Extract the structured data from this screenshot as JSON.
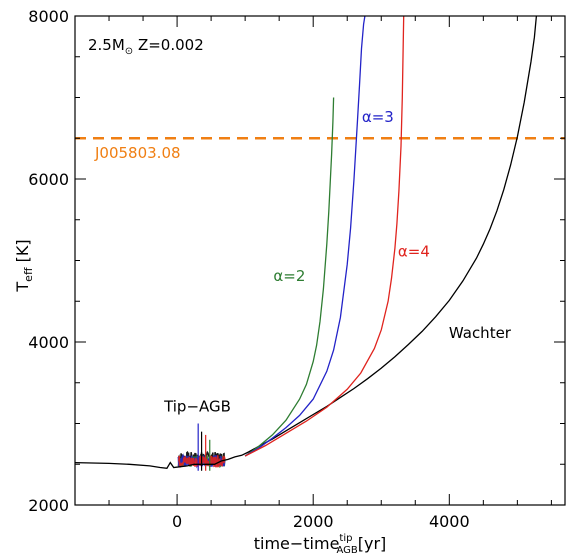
{
  "chart_data": {
    "type": "line",
    "title": "",
    "panel_label": {
      "mass": "2.5",
      "mass_unit_symbol": "M",
      "mass_unit_subscript": "⊙",
      "metallicity": "Z=0.002"
    },
    "xlabel": {
      "text": "time−time",
      "superscript": "tip",
      "subscript": "AGB",
      "unit": "[yr]"
    },
    "ylabel": {
      "text": "T",
      "subscript": "eff",
      "unit": "[K]"
    },
    "xlim": [
      -1500,
      5700
    ],
    "ylim": [
      2000,
      8000
    ],
    "xticks": [
      0,
      2000,
      4000
    ],
    "yticks": [
      2000,
      4000,
      6000,
      8000
    ],
    "x_minor_step": 500,
    "y_minor_step": 500,
    "grid": false,
    "legend": "none",
    "reference_line": {
      "label": "J005803.08",
      "y": 6500,
      "color": "#f07f13",
      "style": "dashed"
    },
    "annotations": [
      {
        "text": "Tip−AGB",
        "x": 300,
        "y": 3150,
        "color": "#000000"
      },
      {
        "text": "α=2",
        "x": 1650,
        "y": 4750,
        "color": "#2e7d32"
      },
      {
        "text": "α=3",
        "x": 2950,
        "y": 6700,
        "color": "#2323c8"
      },
      {
        "text": "α=4",
        "x": 3480,
        "y": 5050,
        "color": "#e0241e"
      },
      {
        "text": "Wachter",
        "x": 4450,
        "y": 4050,
        "color": "#000000"
      }
    ],
    "series": [
      {
        "name": "Wachter",
        "color": "#000000",
        "x": [
          -1500,
          -1000,
          -700,
          -400,
          -250,
          -150,
          -100,
          -50,
          50,
          150,
          250,
          400,
          550,
          650,
          750,
          850,
          950,
          1050,
          1200,
          1400,
          1600,
          1800,
          2000,
          2200,
          2400,
          2600,
          2800,
          3000,
          3200,
          3400,
          3600,
          3800,
          4000,
          4200,
          4400,
          4500,
          4600,
          4700,
          4800,
          4900,
          5000,
          5100,
          5200,
          5250,
          5280
        ],
        "y": [
          2520,
          2510,
          2500,
          2480,
          2460,
          2450,
          2520,
          2460,
          2470,
          2480,
          2500,
          2500,
          2500,
          2540,
          2560,
          2590,
          2610,
          2650,
          2720,
          2810,
          2910,
          3010,
          3110,
          3210,
          3320,
          3430,
          3550,
          3680,
          3820,
          3970,
          4130,
          4310,
          4510,
          4750,
          5030,
          5200,
          5390,
          5610,
          5870,
          6170,
          6520,
          6940,
          7440,
          7740,
          8000
        ]
      },
      {
        "name": "α=2",
        "color": "#2e7d32",
        "x": [
          1000,
          1200,
          1400,
          1600,
          1800,
          1900,
          2000,
          2050,
          2100,
          2150,
          2200,
          2230,
          2250,
          2270,
          2290,
          2300
        ],
        "y": [
          2600,
          2720,
          2860,
          3040,
          3300,
          3480,
          3760,
          3960,
          4250,
          4650,
          5200,
          5600,
          5950,
          6300,
          6700,
          7000
        ]
      },
      {
        "name": "α=3",
        "color": "#2323c8",
        "x": [
          1000,
          1200,
          1400,
          1600,
          1800,
          2000,
          2200,
          2300,
          2400,
          2500,
          2550,
          2600,
          2650,
          2680,
          2710,
          2740,
          2760
        ],
        "y": [
          2600,
          2700,
          2820,
          2950,
          3100,
          3300,
          3640,
          3900,
          4300,
          4950,
          5400,
          6000,
          6700,
          7150,
          7600,
          7900,
          8000
        ]
      },
      {
        "name": "α=4",
        "color": "#e0241e",
        "x": [
          1000,
          1300,
          1600,
          1900,
          2200,
          2500,
          2700,
          2900,
          3000,
          3100,
          3150,
          3200,
          3230,
          3260,
          3290,
          3310,
          3330
        ],
        "y": [
          2600,
          2730,
          2880,
          3030,
          3200,
          3420,
          3620,
          3920,
          4150,
          4500,
          4780,
          5150,
          5450,
          5850,
          6400,
          7000,
          8000
        ]
      }
    ]
  }
}
